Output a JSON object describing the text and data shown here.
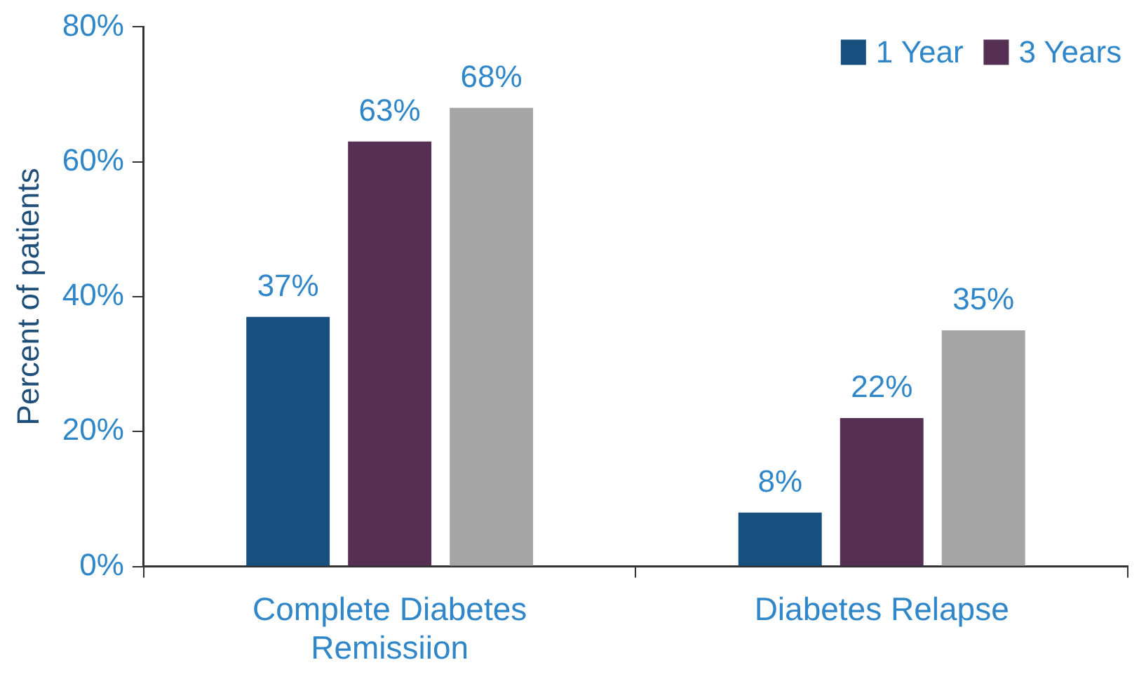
{
  "chart_data": {
    "type": "bar",
    "ylabel": "Percent of patients",
    "categories": [
      "Complete Diabetes Remissiion",
      "Diabetes Relapse"
    ],
    "series": [
      {
        "name": "1 Year",
        "color": "#17507f",
        "values": [
          37,
          8
        ],
        "value_labels": [
          "37%",
          "8%"
        ]
      },
      {
        "name": "3 Years",
        "color": "#562f55",
        "values": [
          63,
          22
        ],
        "value_labels": [
          "63%",
          "22%"
        ]
      },
      {
        "color": "#a5a5a5",
        "values": [
          68,
          35
        ],
        "value_labels": [
          "68%",
          "35%"
        ]
      }
    ],
    "ylim": [
      0,
      80
    ],
    "yticks": [
      {
        "value": 0,
        "label": "0%"
      },
      {
        "value": 20,
        "label": "20%"
      },
      {
        "value": 40,
        "label": "40%"
      },
      {
        "value": 60,
        "label": "60%"
      },
      {
        "value": 80,
        "label": "80%"
      }
    ],
    "grid": false,
    "legend": "top right"
  }
}
